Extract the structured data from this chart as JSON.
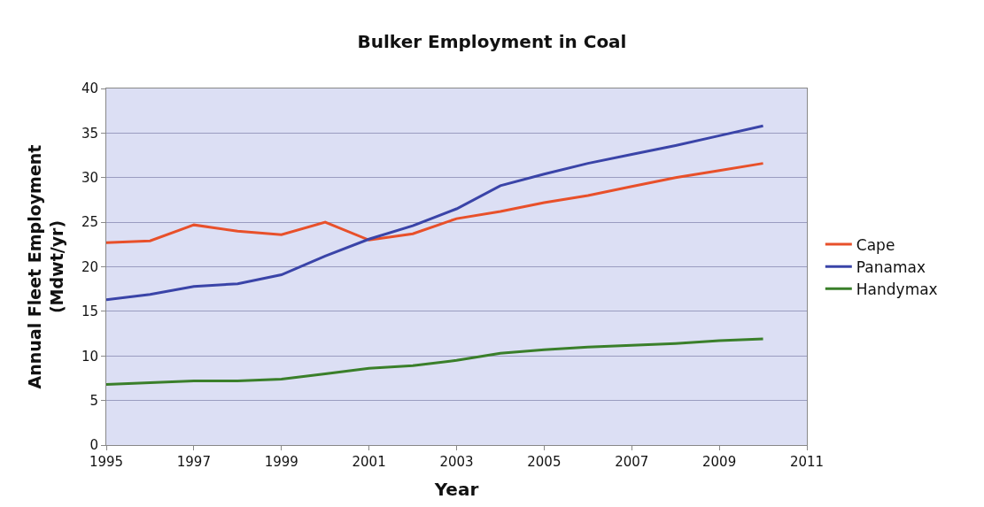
{
  "chart_data": {
    "type": "line",
    "title": "Bulker Employment in Coal",
    "xlabel": "Year",
    "ylabel": "Annual Fleet Employment\n(Mdwt/yr)",
    "x": [
      1995,
      1996,
      1997,
      1998,
      1999,
      2000,
      2001,
      2002,
      2003,
      2004,
      2005,
      2006,
      2007,
      2008,
      2009,
      2010
    ],
    "series": [
      {
        "name": "Cape",
        "color": "#e8502a",
        "values": [
          22.7,
          22.9,
          24.7,
          24.0,
          23.6,
          25.0,
          23.0,
          23.7,
          25.4,
          26.2,
          27.2,
          28.0,
          29.0,
          30.0,
          30.8,
          31.6
        ]
      },
      {
        "name": "Panamax",
        "color": "#3a44a8",
        "values": [
          16.3,
          16.9,
          17.8,
          18.1,
          19.1,
          21.2,
          23.1,
          24.6,
          26.5,
          29.1,
          30.4,
          31.6,
          32.6,
          33.6,
          34.7,
          35.8
        ]
      },
      {
        "name": "Handymax",
        "color": "#3a7f2a",
        "values": [
          6.8,
          7.0,
          7.2,
          7.2,
          7.4,
          8.0,
          8.6,
          8.9,
          9.5,
          10.3,
          10.7,
          11.0,
          11.2,
          11.4,
          11.7,
          11.9
        ]
      }
    ],
    "xlim": [
      1995,
      2011
    ],
    "xticks": [
      1995,
      1997,
      1999,
      2001,
      2003,
      2005,
      2007,
      2009,
      2011
    ],
    "ylim": [
      0,
      40
    ],
    "yticks": [
      0,
      5,
      10,
      15,
      20,
      25,
      30,
      35,
      40
    ],
    "grid": "y",
    "legend": "right",
    "marker": "none",
    "line_style": "solid"
  }
}
